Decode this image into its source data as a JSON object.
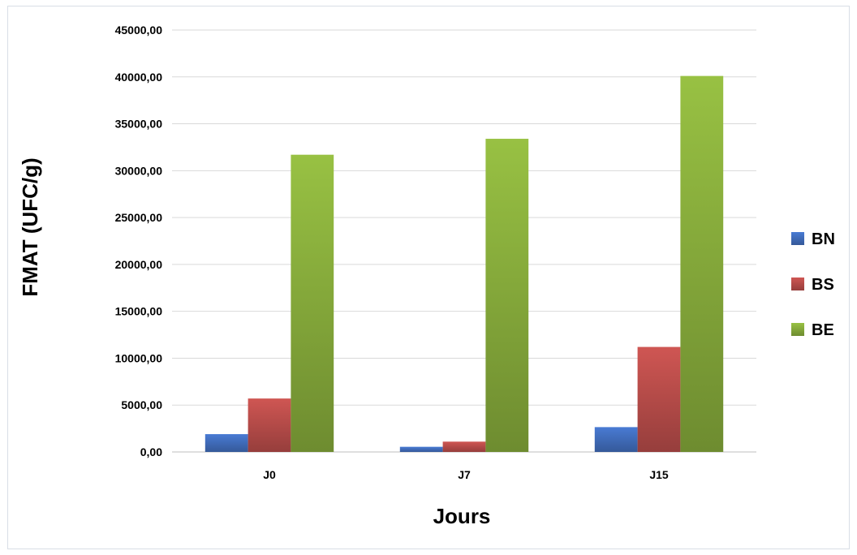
{
  "chart_data": {
    "type": "bar",
    "title": "",
    "xlabel": "Jours",
    "ylabel": "FMAT (UFC/g)",
    "categories": [
      "J0",
      "J7",
      "J15"
    ],
    "series": [
      {
        "name": "BN",
        "values": [
          1900,
          550,
          2650
        ],
        "color": "#4472c4"
      },
      {
        "name": "BS",
        "values": [
          5700,
          1100,
          11200
        ],
        "color": "#c0504d"
      },
      {
        "name": "BE",
        "values": [
          31700,
          33400,
          40100
        ],
        "color": "#8db33e"
      }
    ],
    "ylim": [
      0,
      45000
    ],
    "yticks": [
      "0,00",
      "5000,00",
      "10000,00",
      "15000,00",
      "20000,00",
      "25000,00",
      "30000,00",
      "35000,00",
      "40000,00",
      "45000,00"
    ],
    "grid": true,
    "legend_position": "right"
  }
}
